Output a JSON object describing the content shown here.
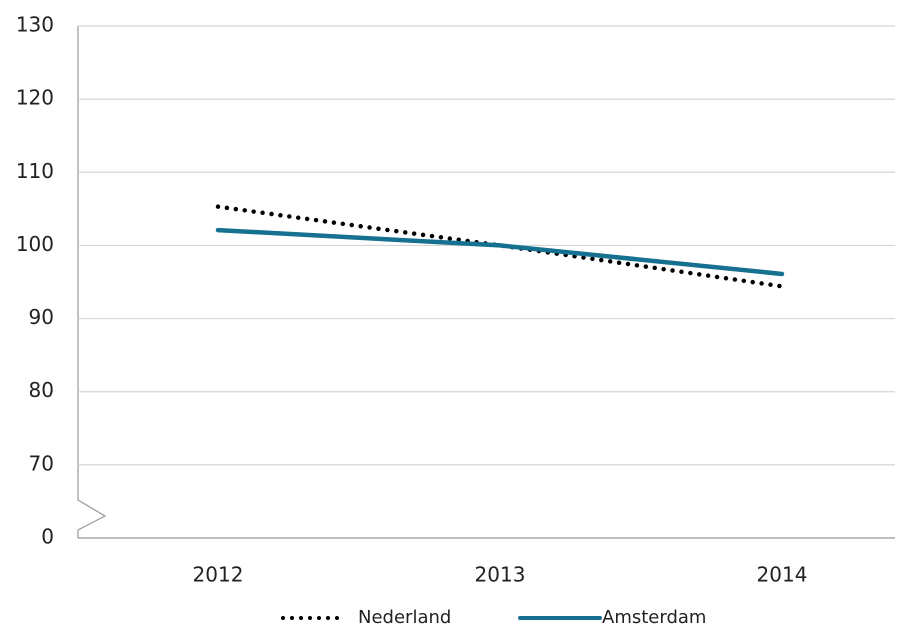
{
  "chart_data": {
    "type": "line",
    "categories": [
      "2012",
      "2013",
      "2014"
    ],
    "series": [
      {
        "name": "Nederland",
        "color": "#000000",
        "style": "dotted",
        "values": [
          105.3,
          100,
          94.4
        ]
      },
      {
        "name": "Amsterdam",
        "color": "#16708f",
        "style": "solid",
        "values": [
          102.1,
          100,
          96.1
        ]
      }
    ],
    "ylim": [
      0,
      130
    ],
    "yticks": [
      0,
      70,
      80,
      90,
      100,
      110,
      120,
      130
    ],
    "axis_break": [
      0,
      70
    ],
    "grid": true,
    "legend": "bottom"
  }
}
